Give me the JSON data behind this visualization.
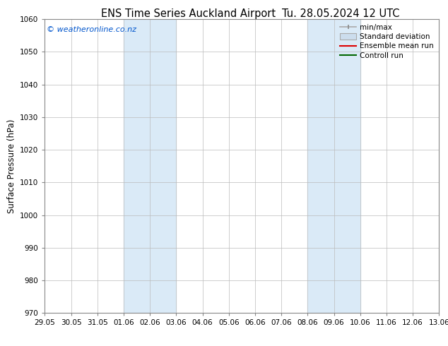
{
  "title": "ENS Time Series Auckland Airport",
  "title2": "Tu. 28.05.2024 12 UTC",
  "ylabel": "Surface Pressure (hPa)",
  "ylim": [
    970,
    1060
  ],
  "yticks": [
    970,
    980,
    990,
    1000,
    1010,
    1020,
    1030,
    1040,
    1050,
    1060
  ],
  "xtick_labels": [
    "29.05",
    "30.05",
    "31.05",
    "01.06",
    "02.06",
    "03.06",
    "04.06",
    "05.06",
    "06.06",
    "07.06",
    "08.06",
    "09.06",
    "10.06",
    "11.06",
    "12.06",
    "13.06"
  ],
  "xtick_positions": [
    0,
    1,
    2,
    3,
    4,
    5,
    6,
    7,
    8,
    9,
    10,
    11,
    12,
    13,
    14,
    15
  ],
  "shaded_regions": [
    {
      "x_start": 3,
      "x_end": 5,
      "color": "#daeaf7"
    },
    {
      "x_start": 10,
      "x_end": 12,
      "color": "#daeaf7"
    }
  ],
  "copyright_text": "© weatheronline.co.nz",
  "copyright_color": "#0055cc",
  "background_color": "#ffffff",
  "legend_items": [
    {
      "label": "min/max",
      "color": "#aaaaaa",
      "style": "errorbar"
    },
    {
      "label": "Standard deviation",
      "color": "#ccdded",
      "style": "fill"
    },
    {
      "label": "Ensemble mean run",
      "color": "#dd0000",
      "style": "line"
    },
    {
      "label": "Controll run",
      "color": "#006600",
      "style": "line"
    }
  ],
  "grid_color": "#bbbbbb",
  "tick_label_fontsize": 7.5,
  "axis_label_fontsize": 8.5,
  "title_fontsize": 10.5
}
